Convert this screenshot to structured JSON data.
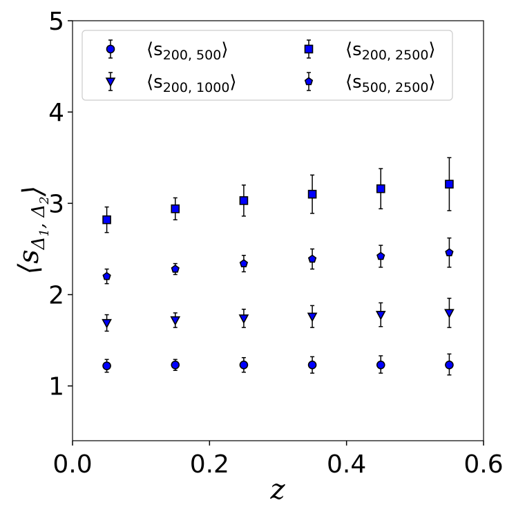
{
  "chart_data": {
    "type": "scatter",
    "title": "",
    "xlabel": "z",
    "ylabel": "⟨s_{Δ1, Δ2}⟩",
    "xlim": [
      0.0,
      0.6
    ],
    "ylim": [
      0.4,
      5.0
    ],
    "xticks": [
      0.0,
      0.2,
      0.4,
      0.6
    ],
    "xtick_labels": [
      "0.0",
      "0.2",
      "0.4",
      "0.6"
    ],
    "yticks": [
      1,
      2,
      3,
      4,
      5
    ],
    "ytick_labels": [
      "1",
      "2",
      "3",
      "4",
      "5"
    ],
    "grid": false,
    "legend_position": "top",
    "x": [
      0.05,
      0.15,
      0.25,
      0.35,
      0.45,
      0.55
    ],
    "series": [
      {
        "name": "⟨s_{200, 500}⟩",
        "label_base": "⟨s",
        "label_sub": "200, 500",
        "label_close": "⟩",
        "marker": "circle",
        "color": "#0000ff",
        "values": [
          1.22,
          1.23,
          1.23,
          1.23,
          1.23,
          1.23
        ],
        "err_low": [
          0.07,
          0.06,
          0.08,
          0.09,
          0.09,
          0.11
        ],
        "err_high": [
          0.07,
          0.06,
          0.08,
          0.09,
          0.1,
          0.12
        ]
      },
      {
        "name": "⟨s_{200, 1000}⟩",
        "label_base": "⟨s",
        "label_sub": "200, 1000",
        "label_close": "⟩",
        "marker": "triangle-down",
        "color": "#0000ff",
        "values": [
          1.69,
          1.72,
          1.74,
          1.76,
          1.78,
          1.8
        ],
        "err_low": [
          0.09,
          0.08,
          0.1,
          0.12,
          0.13,
          0.16
        ],
        "err_high": [
          0.09,
          0.08,
          0.1,
          0.12,
          0.13,
          0.16
        ]
      },
      {
        "name": "⟨s_{200, 2500}⟩",
        "label_base": "⟨s",
        "label_sub": "200, 2500",
        "label_close": "⟩",
        "marker": "square",
        "color": "#0000ff",
        "values": [
          2.82,
          2.94,
          3.03,
          3.1,
          3.16,
          3.21
        ],
        "err_low": [
          0.14,
          0.12,
          0.17,
          0.21,
          0.22,
          0.29
        ],
        "err_high": [
          0.14,
          0.12,
          0.17,
          0.21,
          0.22,
          0.29
        ]
      },
      {
        "name": "⟨s_{500, 2500}⟩",
        "label_base": "⟨s",
        "label_sub": "500, 2500",
        "label_close": "⟩",
        "marker": "pentagon",
        "color": "#0000ff",
        "values": [
          2.2,
          2.28,
          2.34,
          2.39,
          2.42,
          2.46
        ],
        "err_low": [
          0.08,
          0.06,
          0.09,
          0.11,
          0.12,
          0.16
        ],
        "err_high": [
          0.08,
          0.06,
          0.09,
          0.11,
          0.12,
          0.16
        ]
      }
    ]
  }
}
